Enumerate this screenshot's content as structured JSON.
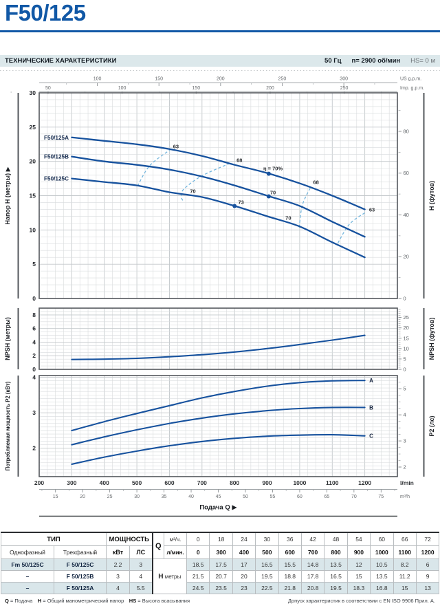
{
  "page": {
    "title": "F50/125"
  },
  "header_bar": {
    "title": "ТЕХНИЧЕСКИЕ ХАРАКТЕРИСТИКИ",
    "frequency": "50 Гц",
    "speed": "n= 2900  об/мин",
    "suction": "HS= 0 м"
  },
  "chart_data": {
    "type": "line",
    "title": "F50/125 pump performance curves",
    "q_axis": {
      "label": "Подача Q",
      "arrow": "▶",
      "qlim": [
        200,
        1300
      ],
      "lmin_ticks": [
        200,
        300,
        400,
        500,
        600,
        700,
        800,
        900,
        1000,
        1100,
        1200
      ],
      "lmin_unit": "l/min",
      "m3h_ticks": [
        15,
        20,
        25,
        30,
        35,
        40,
        45,
        50,
        55,
        60,
        65,
        70,
        75
      ],
      "m3h_unit": "m³/h",
      "us_ticks": [
        100,
        150,
        200,
        250,
        300
      ],
      "us_unit": "US g.p.m.",
      "imp_ticks": [
        50,
        100,
        150,
        200,
        250
      ],
      "imp_unit": "Imp. g.p.m."
    },
    "h_plot": {
      "left_label": "Напор H (метры)",
      "arrow": "▶",
      "ylim": [
        0,
        30
      ],
      "left_ticks": [
        0,
        5,
        10,
        15,
        20,
        25,
        30
      ],
      "right_label": "H (футов)",
      "right_ticks": [
        0,
        20,
        40,
        60,
        80
      ],
      "q": [
        300,
        400,
        500,
        600,
        700,
        800,
        900,
        1000,
        1100,
        1200
      ],
      "series": [
        {
          "name": "F50/125A",
          "values": [
            23.5,
            23,
            22.5,
            21.8,
            20.8,
            19.5,
            18.3,
            16.8,
            15,
            13
          ]
        },
        {
          "name": "F50/125B",
          "values": [
            20.7,
            20,
            19.5,
            18.8,
            17.8,
            16.5,
            15,
            13.5,
            11.2,
            9
          ]
        },
        {
          "name": "F50/125C",
          "values": [
            17.5,
            17,
            16.5,
            15.5,
            14.8,
            13.5,
            12,
            10.5,
            8.2,
            6
          ]
        }
      ],
      "efficiency_labels": [
        {
          "text": "63",
          "q": 620,
          "h": 21.9
        },
        {
          "text": "68",
          "q": 815,
          "h": 19.9
        },
        {
          "text": "η = 70%",
          "q": 918,
          "h": 18.7
        },
        {
          "text": "68",
          "q": 1050,
          "h": 16.7
        },
        {
          "text": "63",
          "q": 1222,
          "h": 12.7
        },
        {
          "text": "70",
          "q": 672,
          "h": 15.4
        },
        {
          "text": "70",
          "q": 918,
          "h": 15.2
        },
        {
          "text": "73",
          "q": 820,
          "h": 13.8
        },
        {
          "text": "70",
          "q": 965,
          "h": 11.5
        }
      ],
      "bep_points": [
        {
          "q": 905,
          "h": 18.2
        },
        {
          "q": 905,
          "h": 14.9
        },
        {
          "q": 800,
          "h": 13.5
        }
      ],
      "efficiency_arcs": [
        [
          [
            605,
            21.8
          ],
          [
            540,
            19.4
          ],
          [
            502,
            16.4
          ]
        ],
        [
          [
            785,
            19.7
          ],
          [
            700,
            17.9
          ],
          [
            645,
            16.0
          ],
          [
            636,
            14.9
          ],
          [
            644,
            14.1
          ]
        ],
        [
          [
            1032,
            16.1
          ],
          [
            1008,
            13.6
          ],
          [
            998,
            10.2
          ]
        ],
        [
          [
            1200,
            12.5
          ],
          [
            1152,
            10.8
          ],
          [
            1114,
            7.8
          ]
        ]
      ]
    },
    "npsh_plot": {
      "left_label": "NPSH (метры)",
      "ylim": [
        0,
        9
      ],
      "left_ticks": [
        0,
        2,
        4,
        6,
        8
      ],
      "right_label": "NPSH (футов)",
      "right_ticks": [
        0,
        5,
        10,
        15,
        20,
        25
      ],
      "q": [
        300,
        400,
        500,
        600,
        700,
        800,
        900,
        1000,
        1100,
        1200
      ],
      "values": [
        1.45,
        1.5,
        1.62,
        1.85,
        2.15,
        2.55,
        3.05,
        3.65,
        4.3,
        5.0
      ]
    },
    "p2_plot": {
      "left_label": "Потребляемая мощность  P2  (кВт)",
      "ylim": [
        1.2,
        4.05
      ],
      "left_ticks": [
        2,
        3,
        4
      ],
      "right_label": "P2 (лс)",
      "right_ticks": [
        2,
        3,
        4,
        5
      ],
      "q": [
        300,
        400,
        500,
        600,
        700,
        800,
        900,
        1000,
        1100,
        1200
      ],
      "series": [
        {
          "name": "A",
          "values": [
            2.5,
            2.75,
            2.98,
            3.2,
            3.42,
            3.6,
            3.75,
            3.85,
            3.9,
            3.91
          ]
        },
        {
          "name": "B",
          "values": [
            2.1,
            2.32,
            2.52,
            2.7,
            2.85,
            2.97,
            3.06,
            3.12,
            3.15,
            3.15
          ]
        },
        {
          "name": "C",
          "values": [
            1.55,
            1.75,
            1.92,
            2.07,
            2.19,
            2.28,
            2.34,
            2.37,
            2.38,
            2.35
          ]
        }
      ]
    }
  },
  "table": {
    "type_header": "ТИП",
    "power_header": "МОЩНОСТЬ",
    "single_phase": "Однофазный",
    "three_phase": "Трехфазный",
    "kw": "кВт",
    "hp": "ЛС",
    "q_label": "Q",
    "m3h_label": "м³/ч.",
    "lmin_label": "л/мин.",
    "h_label": "H",
    "h_unit": "метры",
    "m3h_values": [
      "0",
      "18",
      "24",
      "30",
      "36",
      "42",
      "48",
      "54",
      "60",
      "66",
      "72"
    ],
    "lmin_values": [
      "0",
      "300",
      "400",
      "500",
      "600",
      "700",
      "800",
      "900",
      "1000",
      "1100",
      "1200"
    ],
    "rows": [
      {
        "single": "Fm 50/125C",
        "three": "F 50/125C",
        "kw": "2.2",
        "hp": "3",
        "h": [
          "18.5",
          "17.5",
          "17",
          "16.5",
          "15.5",
          "14.8",
          "13.5",
          "12",
          "10.5",
          "8.2",
          "6"
        ],
        "shaded": true
      },
      {
        "single": "–",
        "three": "F 50/125B",
        "kw": "3",
        "hp": "4",
        "h": [
          "21.5",
          "20.7",
          "20",
          "19.5",
          "18.8",
          "17.8",
          "16.5",
          "15",
          "13.5",
          "11.2",
          "9"
        ],
        "shaded": false
      },
      {
        "single": "–",
        "three": "F 50/125A",
        "kw": "4",
        "hp": "5.5",
        "h": [
          "24.5",
          "23.5",
          "23",
          "22.5",
          "21.8",
          "20.8",
          "19.5",
          "18.3",
          "16.8",
          "15",
          "13"
        ],
        "shaded": true
      }
    ]
  },
  "footnotes": {
    "legend": [
      {
        "key": "Q",
        "text": "= Подача"
      },
      {
        "key": "H",
        "text": "= Общий манометрический напор"
      },
      {
        "key": "HS",
        "text": "= Высота всасывания"
      }
    ],
    "tolerance": "Допуск характеристик в соответствии с EN ISO 9906 Прил. А."
  },
  "colors": {
    "brand_blue": "#1158a6",
    "curve_blue": "#17529e",
    "efficiency_dash": "#74b6dd",
    "header_bar_bg": "#dce8eb",
    "table_shade": "#d9e6ea"
  }
}
